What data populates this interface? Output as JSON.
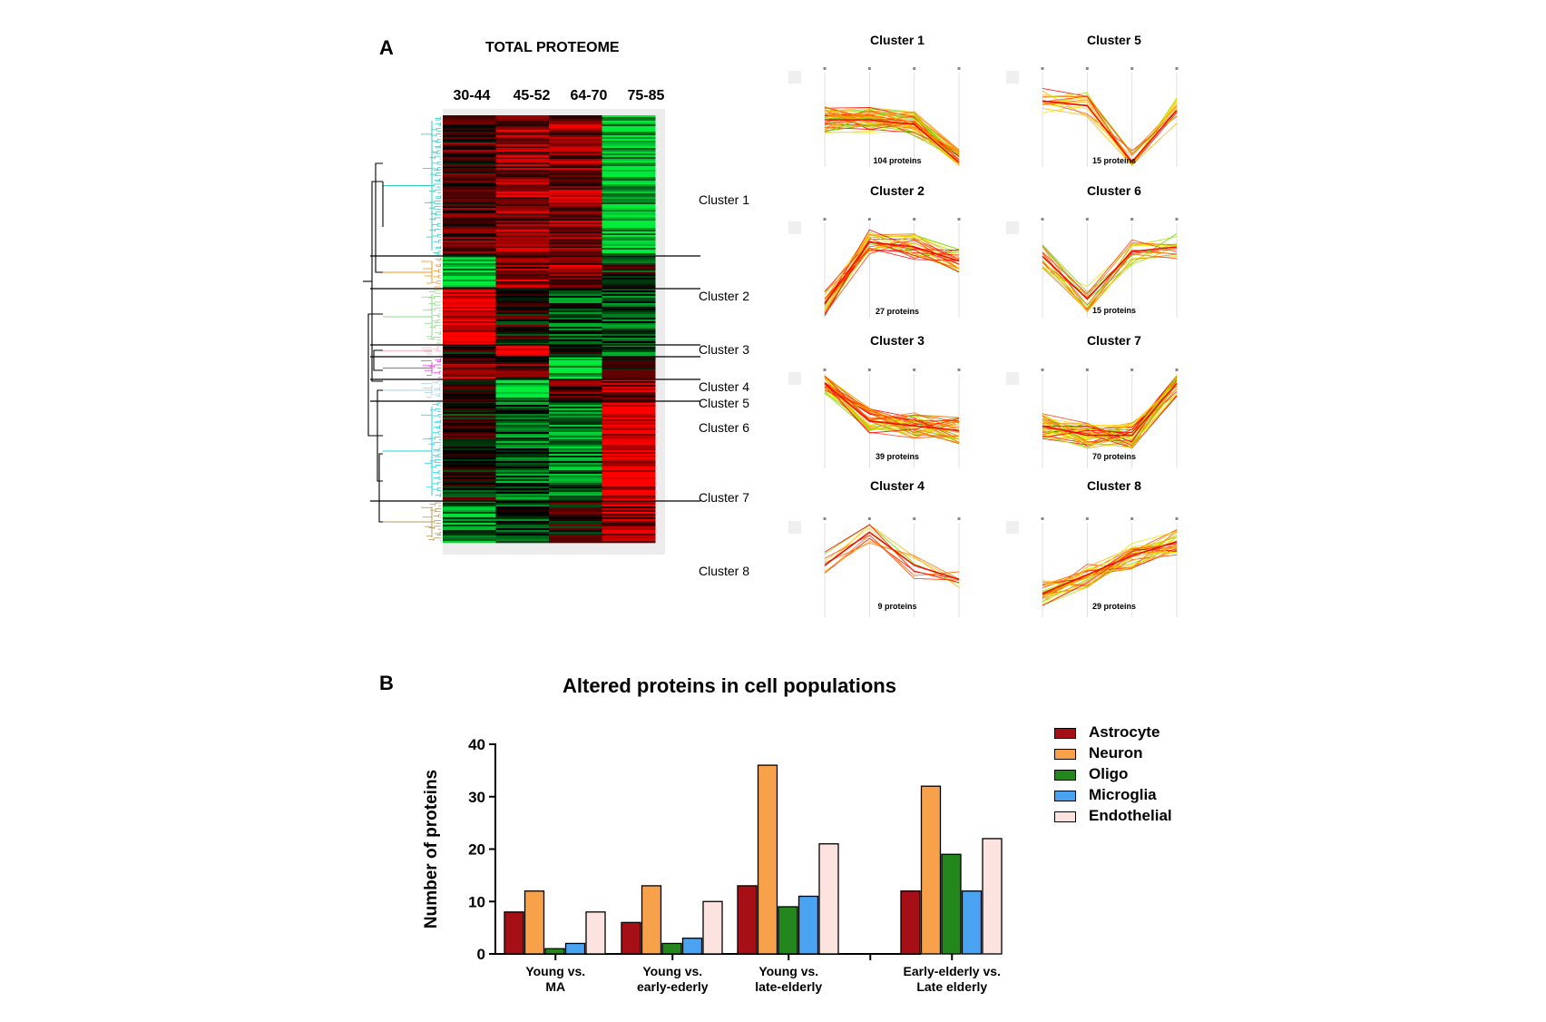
{
  "panel_a": {
    "letter": "A",
    "title": "TOTAL PROTEOME",
    "age_groups": [
      "30-44",
      "45-52",
      "64-70",
      "75-85"
    ],
    "clusters": [
      {
        "label": "Cluster 1",
        "dendro_color": "#2fc9c0",
        "pattern": [
          0.3,
          0.55,
          0.55,
          -0.8
        ]
      },
      {
        "label": "Cluster 2",
        "dendro_color": "#f39a1e",
        "pattern": [
          -0.7,
          0.6,
          0.55,
          -0.1
        ]
      },
      {
        "label": "Cluster 3",
        "dendro_color": "#8fd98a",
        "pattern": [
          0.95,
          0.05,
          -0.3,
          -0.3
        ]
      },
      {
        "label": "Cluster 4",
        "dendro_color": "#f7b8c6",
        "pattern": [
          0.1,
          0.95,
          -0.2,
          -0.4
        ]
      },
      {
        "label": "Cluster 5",
        "dendro_color": "#e43be0",
        "pattern": [
          0.5,
          0.3,
          -0.85,
          0.2
        ]
      },
      {
        "label": "Cluster 6",
        "dendro_color": "#a9d3e6",
        "pattern": [
          0.2,
          -0.85,
          0.4,
          0.6
        ]
      },
      {
        "label": "Cluster 7",
        "dendro_color": "#1fd3e0",
        "pattern": [
          0.0,
          -0.4,
          -0.5,
          0.95
        ]
      },
      {
        "label": "Cluster 8",
        "dendro_color": "#b49a5a",
        "pattern": [
          -0.6,
          -0.2,
          0.1,
          0.6
        ]
      }
    ],
    "profile_plots": [
      {
        "title": "Cluster 1",
        "count": "104 proteins",
        "profile": [
          0.5,
          0.5,
          0.55,
          0.95
        ],
        "n_lines": 40
      },
      {
        "title": "Cluster 5",
        "count": "15 proteins",
        "profile": [
          0.3,
          0.35,
          0.95,
          0.4
        ],
        "n_lines": 15
      },
      {
        "title": "Cluster 2",
        "count": "27 proteins",
        "profile": [
          0.85,
          0.2,
          0.25,
          0.4
        ],
        "n_lines": 25
      },
      {
        "title": "Cluster 6",
        "count": "15 proteins",
        "profile": [
          0.35,
          0.8,
          0.3,
          0.25
        ],
        "n_lines": 15
      },
      {
        "title": "Cluster 3",
        "count": "39 proteins",
        "profile": [
          0.1,
          0.5,
          0.55,
          0.6
        ],
        "n_lines": 35
      },
      {
        "title": "Cluster 7",
        "count": "70 proteins",
        "profile": [
          0.55,
          0.65,
          0.65,
          0.1
        ],
        "n_lines": 40
      },
      {
        "title": "Cluster 4",
        "count": "9 proteins",
        "profile": [
          0.45,
          0.1,
          0.45,
          0.6
        ],
        "n_lines": 9
      },
      {
        "title": "Cluster 8",
        "count": "29 proteins",
        "profile": [
          0.75,
          0.55,
          0.35,
          0.2
        ],
        "n_lines": 29
      }
    ]
  },
  "panel_b": {
    "letter": "B",
    "chart_data": {
      "type": "bar",
      "title": "Altered proteins in cell populations",
      "ylabel": "Number of proteins",
      "xlabel": "",
      "ylim": [
        0,
        40
      ],
      "yticks": [
        0,
        10,
        20,
        30,
        40
      ],
      "categories": [
        "Young vs.\nMA",
        "Young vs.\nearly-ederly",
        "Young vs.\nlate-elderly",
        "Early-elderly vs.\nLate elderly"
      ],
      "series": [
        {
          "name": "Astrocyte",
          "color": "#a50f15",
          "values": [
            8,
            6,
            13,
            12
          ]
        },
        {
          "name": "Neuron",
          "color": "#f7a24a",
          "values": [
            12,
            13,
            36,
            32
          ]
        },
        {
          "name": "Oligo",
          "color": "#23871d",
          "values": [
            1,
            2,
            9,
            19
          ]
        },
        {
          "name": "Microglia",
          "color": "#4aa3f0",
          "values": [
            2,
            3,
            11,
            12
          ]
        },
        {
          "name": "Endothelial",
          "color": "#fde3e0",
          "values": [
            8,
            10,
            21,
            22
          ]
        }
      ],
      "legend_position": "right",
      "grid": false
    }
  }
}
